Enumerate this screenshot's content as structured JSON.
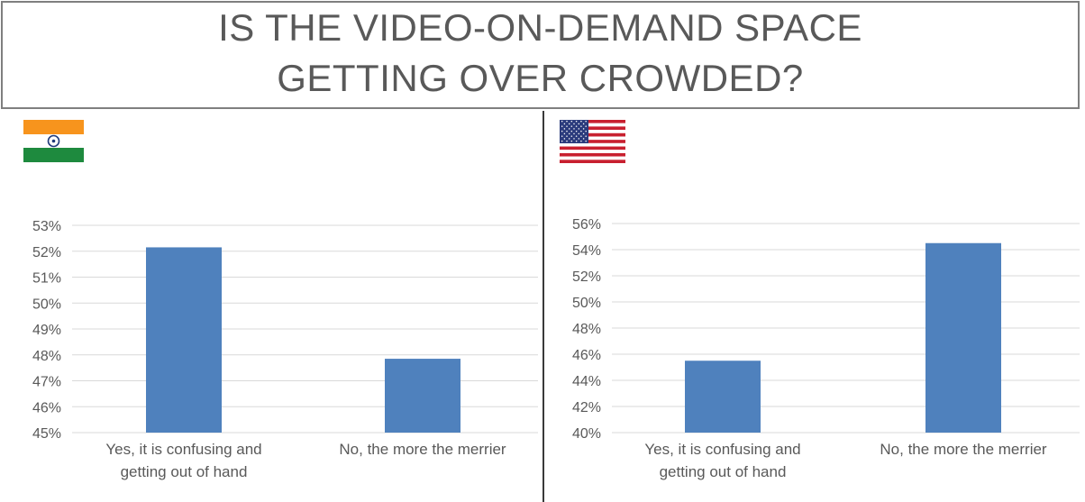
{
  "title": {
    "line1": "IS THE VIDEO-ON-DEMAND SPACE",
    "line2": "GETTING OVER CROWDED?"
  },
  "colors": {
    "bar": "#4f81bd",
    "grid": "#d9d9d9",
    "axis_text": "#595959"
  },
  "chart_data": [
    {
      "type": "bar",
      "panel": "left",
      "flag": "india-flag",
      "categories": [
        [
          "Yes, it is confusing and",
          "getting out of hand"
        ],
        [
          "No, the more the merrier"
        ]
      ],
      "values": [
        52.15,
        47.85
      ],
      "ylim": [
        45,
        53
      ],
      "yticks": [
        45,
        46,
        47,
        48,
        49,
        50,
        51,
        52,
        53
      ],
      "tick_suffix": "%",
      "grid": true
    },
    {
      "type": "bar",
      "panel": "right",
      "flag": "usa-flag",
      "categories": [
        [
          "Yes, it is confusing and",
          "getting out of hand"
        ],
        [
          "No, the more the merrier"
        ]
      ],
      "values": [
        45.5,
        54.5
      ],
      "ylim": [
        40,
        56
      ],
      "yticks": [
        40,
        42,
        44,
        46,
        48,
        50,
        52,
        54,
        56
      ],
      "tick_suffix": "%",
      "grid": true
    }
  ]
}
